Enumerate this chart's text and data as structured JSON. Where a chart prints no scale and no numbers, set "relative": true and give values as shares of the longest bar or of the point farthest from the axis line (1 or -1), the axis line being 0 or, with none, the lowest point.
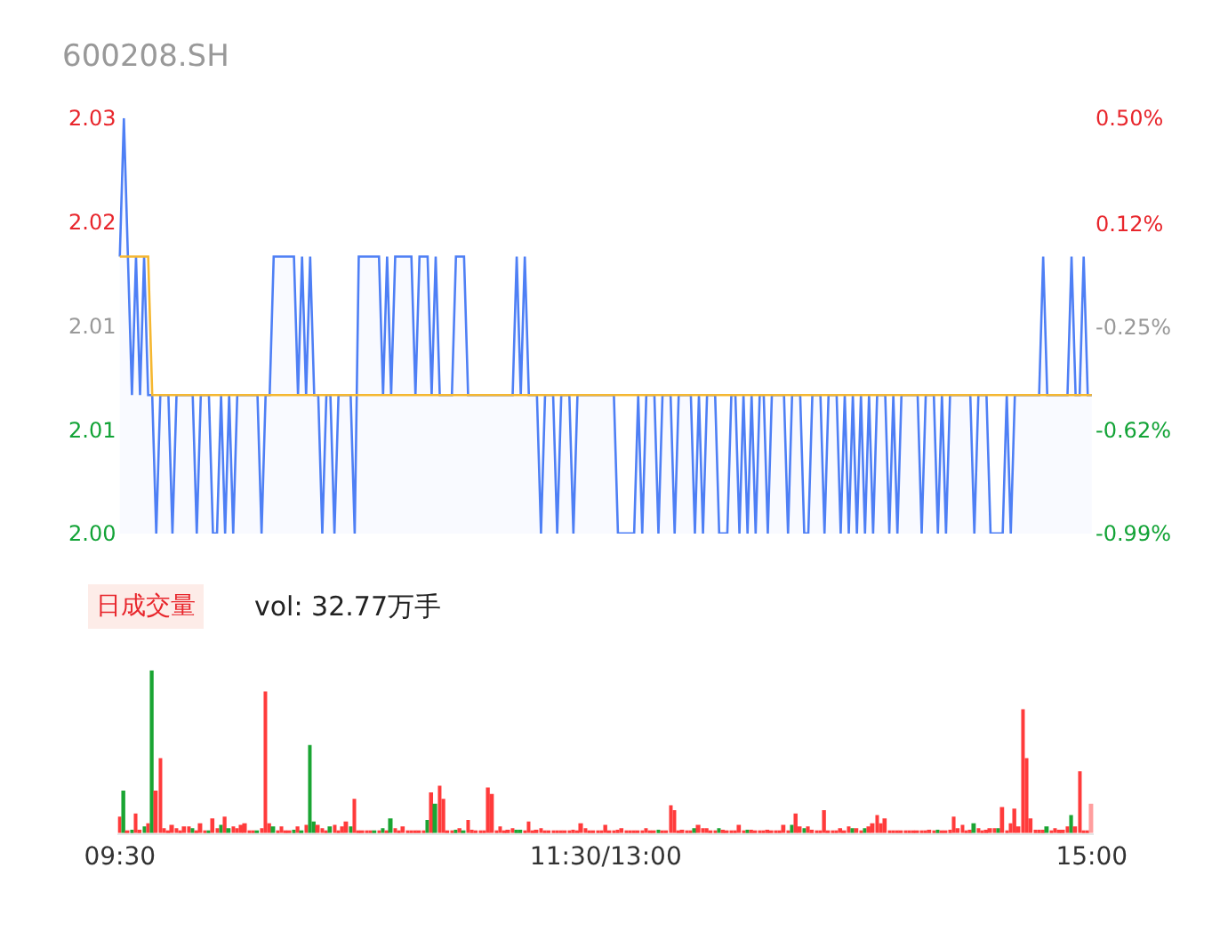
{
  "chart_data": [
    {
      "type": "line",
      "title": "600208.SH",
      "tick_labels": "y",
      "categories": [
        null,
        null,
        null,
        null,
        null,
        null,
        null,
        null,
        null,
        null,
        null,
        null,
        null,
        null,
        null,
        null,
        null,
        null,
        null,
        null,
        null,
        null,
        null,
        null,
        null,
        null,
        null,
        null,
        null,
        null,
        null,
        null,
        null,
        null,
        null,
        null,
        null,
        null,
        null,
        null,
        null,
        null,
        null,
        null,
        null,
        null,
        null,
        null,
        null,
        null,
        null,
        null,
        null,
        null,
        null,
        null,
        null,
        null,
        null,
        null,
        null,
        null,
        null,
        null,
        null,
        null,
        null,
        null,
        null,
        null,
        null,
        null,
        null,
        null,
        null,
        null,
        null,
        null,
        null,
        null,
        null,
        null,
        null,
        null,
        null,
        null,
        null,
        null,
        null,
        null,
        null,
        null,
        null,
        null,
        null,
        null,
        null,
        null,
        null,
        null,
        null,
        null,
        null,
        null,
        null,
        null,
        null,
        null,
        null,
        null,
        null,
        null,
        null,
        null,
        null,
        null,
        null,
        null,
        null,
        null,
        null,
        null,
        null,
        null,
        null,
        null,
        null,
        null,
        null,
        null,
        null,
        null,
        null,
        null,
        null,
        null,
        null,
        null,
        null,
        null,
        null,
        null,
        null,
        null,
        null,
        null,
        null,
        null,
        null,
        null,
        null,
        null,
        null,
        null,
        null,
        null,
        null,
        null,
        null,
        null,
        null,
        null,
        null,
        null,
        null,
        null,
        null,
        null,
        null,
        null,
        null,
        null,
        null,
        null,
        null,
        null,
        null,
        null,
        null,
        null,
        null,
        null,
        null,
        null,
        null,
        null,
        null,
        null,
        null,
        null,
        null,
        null,
        null,
        null,
        null,
        null,
        null,
        null,
        null,
        null,
        null,
        null,
        null,
        null,
        null,
        null,
        null,
        null,
        null,
        null,
        null,
        null,
        null,
        null,
        null,
        null,
        null,
        null,
        null,
        null,
        null,
        null,
        null,
        null,
        null,
        null,
        null,
        null,
        null,
        null,
        null,
        null,
        null,
        null,
        null,
        null,
        null,
        null,
        null,
        null,
        null
      ],
      "ylim": [
        2.0,
        2.03
      ],
      "yticks": [
        {
          "value": 2.0,
          "label": "2.00"
        },
        {
          "value": 2.0075,
          "label": "2.01"
        },
        {
          "value": 2.015,
          "label": "2.01"
        },
        {
          "value": 2.0225,
          "label": "2.02"
        },
        {
          "value": 2.03,
          "label": "2.03"
        }
      ],
      "y2lim": [
        -0.99,
        0.5
      ],
      "y2ticks": [
        {
          "value": -0.99,
          "label": "-0.99%"
        },
        {
          "value": -0.62,
          "label": "-0.62%"
        },
        {
          "value": -0.25,
          "label": "-0.25%"
        },
        {
          "value": 0.12,
          "label": "0.12%"
        },
        {
          "value": 0.5,
          "label": "0.50%"
        }
      ],
      "series": [
        {
          "type": "area",
          "color": "#4e7ff5",
          "values": [
            2.02,
            2.03,
            2.02,
            2.01,
            2.02,
            2.01,
            2.02,
            2.01,
            2.01,
            2.0,
            2.01,
            2.01,
            2.01,
            2.0,
            2.01,
            2.01,
            2.01,
            2.01,
            2.01,
            2.0,
            2.01,
            2.01,
            2.01,
            2.0,
            2.0,
            2.01,
            2.0,
            2.01,
            2.0,
            2.01,
            2.01,
            2.01,
            2.01,
            2.01,
            2.01,
            2.0,
            2.01,
            2.01,
            2.02,
            2.02,
            2.02,
            2.02,
            2.02,
            2.02,
            2.01,
            2.02,
            2.01,
            2.02,
            2.01,
            2.01,
            2.0,
            2.01,
            2.01,
            2.0,
            2.01,
            2.01,
            2.01,
            2.01,
            2.0,
            2.02,
            2.02,
            2.02,
            2.02,
            2.02,
            2.02,
            2.01,
            2.02,
            2.01,
            2.02,
            2.02,
            2.02,
            2.02,
            2.02,
            2.01,
            2.02,
            2.02,
            2.02,
            2.01,
            2.02,
            2.01,
            2.01,
            2.01,
            2.01,
            2.02,
            2.02,
            2.02,
            2.01,
            2.01,
            2.01,
            2.01,
            2.01,
            2.01,
            2.01,
            2.01,
            2.01,
            2.01,
            2.01,
            2.01,
            2.02,
            2.01,
            2.02,
            2.01,
            2.01,
            2.01,
            2.0,
            2.01,
            2.01,
            2.01,
            2.0,
            2.01,
            2.01,
            2.01,
            2.0,
            2.01,
            2.01,
            2.01,
            2.01,
            2.01,
            2.01,
            2.01,
            2.01,
            2.01,
            2.01,
            2.0,
            2.0,
            2.0,
            2.0,
            2.0,
            2.01,
            2.0,
            2.01,
            2.01,
            2.01,
            2.0,
            2.01,
            2.01,
            2.01,
            2.0,
            2.01,
            2.01,
            2.01,
            2.01,
            2.0,
            2.01,
            2.0,
            2.01,
            2.01,
            2.01,
            2.0,
            2.0,
            2.0,
            2.01,
            2.01,
            2.0,
            2.01,
            2.0,
            2.01,
            2.0,
            2.01,
            2.01,
            2.0,
            2.01,
            2.01,
            2.01,
            2.01,
            2.0,
            2.01,
            2.01,
            2.01,
            2.0,
            2.0,
            2.01,
            2.01,
            2.01,
            2.0,
            2.01,
            2.01,
            2.01,
            2.0,
            2.01,
            2.0,
            2.01,
            2.0,
            2.01,
            2.0,
            2.01,
            2.0,
            2.01,
            2.01,
            2.01,
            2.0,
            2.01,
            2.0,
            2.01,
            2.01,
            2.01,
            2.01,
            2.01,
            2.0,
            2.01,
            2.01,
            2.01,
            2.0,
            2.01,
            2.0,
            2.01,
            2.01,
            2.01,
            2.01,
            2.01,
            2.01,
            2.0,
            2.01,
            2.01,
            2.01,
            2.0,
            2.0,
            2.0,
            2.0,
            2.01,
            2.0,
            2.01,
            2.01,
            2.01,
            2.01,
            2.01,
            2.01,
            2.01,
            2.02,
            2.01,
            2.01,
            2.01,
            2.01,
            2.01,
            2.01,
            2.02,
            2.01,
            2.01,
            2.02,
            2.01,
            2.01
          ]
        },
        {
          "type": "line",
          "color": "#f5b731",
          "values": [
            2.02,
            2.02,
            2.02,
            2.02,
            2.02,
            2.02,
            2.02,
            2.02,
            2.01,
            2.01,
            2.01,
            2.01,
            2.01,
            2.01,
            2.01,
            2.01,
            2.01,
            2.01,
            2.01,
            2.01,
            2.01,
            2.01,
            2.01,
            2.01,
            2.01,
            2.01,
            2.01,
            2.01,
            2.01,
            2.01,
            2.01,
            2.01,
            2.01,
            2.01,
            2.01,
            2.01,
            2.01,
            2.01,
            2.01,
            2.01,
            2.01,
            2.01,
            2.01,
            2.01,
            2.01,
            2.01,
            2.01,
            2.01,
            2.01,
            2.01,
            2.01,
            2.01,
            2.01,
            2.01,
            2.01,
            2.01,
            2.01,
            2.01,
            2.01,
            2.01,
            2.01,
            2.01,
            2.01,
            2.01,
            2.01,
            2.01,
            2.01,
            2.01,
            2.01,
            2.01,
            2.01,
            2.01,
            2.01,
            2.01,
            2.01,
            2.01,
            2.01,
            2.01,
            2.01,
            2.01,
            2.01,
            2.01,
            2.01,
            2.01,
            2.01,
            2.01,
            2.01,
            2.01,
            2.01,
            2.01,
            2.01,
            2.01,
            2.01,
            2.01,
            2.01,
            2.01,
            2.01,
            2.01,
            2.01,
            2.01,
            2.01,
            2.01,
            2.01,
            2.01,
            2.01,
            2.01,
            2.01,
            2.01,
            2.01,
            2.01,
            2.01,
            2.01,
            2.01,
            2.01,
            2.01,
            2.01,
            2.01,
            2.01,
            2.01,
            2.01,
            2.01,
            2.01,
            2.01,
            2.01,
            2.01,
            2.01,
            2.01,
            2.01,
            2.01,
            2.01,
            2.01,
            2.01,
            2.01,
            2.01,
            2.01,
            2.01,
            2.01,
            2.01,
            2.01,
            2.01,
            2.01,
            2.01,
            2.01,
            2.01,
            2.01,
            2.01,
            2.01,
            2.01,
            2.01,
            2.01,
            2.01,
            2.01,
            2.01,
            2.01,
            2.01,
            2.01,
            2.01,
            2.01,
            2.01,
            2.01,
            2.01,
            2.01,
            2.01,
            2.01,
            2.01,
            2.01,
            2.01,
            2.01,
            2.01,
            2.01,
            2.01,
            2.01,
            2.01,
            2.01,
            2.01,
            2.01,
            2.01,
            2.01,
            2.01,
            2.01,
            2.01,
            2.01,
            2.01,
            2.01,
            2.01,
            2.01,
            2.01,
            2.01,
            2.01,
            2.01,
            2.01,
            2.01,
            2.01,
            2.01,
            2.01,
            2.01,
            2.01,
            2.01,
            2.01,
            2.01,
            2.01,
            2.01,
            2.01,
            2.01,
            2.01,
            2.01,
            2.01,
            2.01,
            2.01,
            2.01,
            2.01,
            2.01,
            2.01,
            2.01,
            2.01,
            2.01,
            2.01,
            2.01,
            2.01,
            2.01,
            2.01,
            2.01,
            2.01,
            2.01,
            2.01,
            2.01,
            2.01,
            2.01,
            2.01,
            2.01,
            2.01,
            2.01,
            2.01,
            2.01,
            2.01,
            2.01,
            2.01,
            2.01,
            2.01,
            2.01,
            2.01
          ]
        }
      ]
    },
    {
      "type": "bar",
      "title": "日成交量",
      "annotations": [
        "vol: 32.77万手"
      ],
      "relative": true,
      "tick_labels": "x",
      "categories": [
        "09:30",
        null,
        null,
        null,
        null,
        null,
        null,
        null,
        null,
        null,
        null,
        null,
        null,
        null,
        null,
        null,
        null,
        null,
        null,
        null,
        null,
        null,
        null,
        null,
        null,
        null,
        null,
        null,
        null,
        null,
        null,
        null,
        null,
        null,
        null,
        null,
        null,
        null,
        null,
        null,
        null,
        null,
        null,
        null,
        null,
        null,
        null,
        null,
        null,
        null,
        null,
        null,
        null,
        null,
        null,
        null,
        null,
        null,
        null,
        null,
        null,
        null,
        null,
        null,
        null,
        null,
        null,
        null,
        null,
        null,
        null,
        null,
        null,
        null,
        null,
        null,
        null,
        null,
        null,
        null,
        null,
        null,
        null,
        null,
        null,
        null,
        null,
        null,
        null,
        null,
        null,
        null,
        null,
        null,
        null,
        null,
        null,
        null,
        null,
        null,
        null,
        null,
        null,
        null,
        null,
        null,
        null,
        null,
        null,
        null,
        null,
        null,
        null,
        null,
        null,
        null,
        null,
        null,
        null,
        null,
        "11:30/13:00",
        null,
        null,
        null,
        null,
        null,
        null,
        null,
        null,
        null,
        null,
        null,
        null,
        null,
        null,
        null,
        null,
        null,
        null,
        null,
        null,
        null,
        null,
        null,
        null,
        null,
        null,
        null,
        null,
        null,
        null,
        null,
        null,
        null,
        null,
        null,
        null,
        null,
        null,
        null,
        null,
        null,
        null,
        null,
        null,
        null,
        null,
        null,
        null,
        null,
        null,
        null,
        null,
        null,
        null,
        null,
        null,
        null,
        null,
        null,
        null,
        null,
        null,
        null,
        null,
        null,
        null,
        null,
        null,
        null,
        null,
        null,
        null,
        null,
        null,
        null,
        null,
        null,
        null,
        null,
        null,
        null,
        null,
        null,
        null,
        null,
        null,
        null,
        null,
        null,
        null,
        null,
        null,
        null,
        null,
        null,
        null,
        null,
        null,
        null,
        null,
        null,
        null,
        null,
        null,
        null,
        null,
        null,
        null,
        null,
        null,
        null,
        null,
        null,
        null,
        null,
        null,
        null,
        null,
        null,
        "15:00"
      ],
      "values": [
        0.1,
        0.26,
        0.01,
        0.02,
        0.12,
        0.02,
        0.04,
        0.06,
        1.0,
        0.26,
        0.46,
        0.03,
        0.01,
        0.05,
        0.03,
        0.01,
        0.04,
        0.04,
        0.03,
        0.01,
        0.06,
        0.01,
        0.01,
        0.09,
        0.03,
        0.05,
        0.1,
        0.03,
        0.04,
        0.03,
        0.05,
        0.06,
        0.01,
        0.01,
        0.01,
        0.03,
        0.87,
        0.06,
        0.04,
        0.01,
        0.04,
        0.01,
        0.01,
        0.02,
        0.04,
        0.01,
        0.05,
        0.54,
        0.07,
        0.05,
        0.03,
        0.01,
        0.04,
        0.05,
        0.01,
        0.04,
        0.07,
        0.04,
        0.21,
        0.01,
        0.01,
        0.01,
        0.01,
        0.01,
        0.01,
        0.03,
        0.01,
        0.09,
        0.03,
        0.01,
        0.04,
        0.01,
        0.01,
        0.01,
        0.01,
        0.01,
        0.08,
        0.25,
        0.18,
        0.29,
        0.21,
        0.01,
        0.01,
        0.02,
        0.03,
        0.01,
        0.08,
        0.02,
        0.01,
        0.01,
        0.01,
        0.28,
        0.24,
        0.01,
        0.04,
        0.01,
        0.02,
        0.03,
        0.02,
        0.02,
        0.01,
        0.07,
        0.01,
        0.02,
        0.03,
        0.01,
        0.01,
        0.01,
        0.01,
        0.01,
        0.01,
        0.01,
        0.02,
        0.01,
        0.06,
        0.03,
        0.01,
        0.01,
        0.01,
        0.01,
        0.05,
        0.01,
        0.01,
        0.02,
        0.03,
        0.01,
        0.01,
        0.01,
        0.01,
        0.01,
        0.03,
        0.01,
        0.01,
        0.02,
        0.01,
        0.01,
        0.17,
        0.14,
        0.01,
        0.02,
        0.01,
        0.01,
        0.03,
        0.05,
        0.03,
        0.03,
        0.01,
        0.01,
        0.03,
        0.02,
        0.01,
        0.01,
        0.01,
        0.05,
        0.01,
        0.02,
        0.02,
        0.01,
        0.01,
        0.01,
        0.02,
        0.01,
        0.01,
        0.01,
        0.05,
        0.01,
        0.05,
        0.12,
        0.04,
        0.03,
        0.04,
        0.02,
        0.01,
        0.01,
        0.14,
        0.01,
        0.01,
        0.01,
        0.03,
        0.01,
        0.04,
        0.03,
        0.03,
        0.01,
        0.03,
        0.04,
        0.06,
        0.11,
        0.06,
        0.09,
        0.01,
        0.01,
        0.01,
        0.01,
        0.01,
        0.01,
        0.01,
        0.01,
        0.01,
        0.01,
        0.02,
        0.01,
        0.02,
        0.01,
        0.01,
        0.02,
        0.1,
        0.03,
        0.05,
        0.01,
        0.02,
        0.06,
        0.03,
        0.01,
        0.02,
        0.03,
        0.03,
        0.03,
        0.16,
        0.01,
        0.06,
        0.15,
        0.04,
        0.76,
        0.46,
        0.09,
        0.02,
        0.02,
        0.02,
        0.04,
        0.01,
        0.03,
        0.02,
        0.02,
        0.04,
        0.11,
        0.04,
        0.38,
        0.01,
        0.01,
        0.18
      ],
      "colors": [
        "#ff3b3b",
        "#1aa533",
        "#ff3b3b",
        "#1aa533",
        "#ff3b3b",
        "#ff3b3b",
        "#1aa533",
        "#ff3b3b",
        "#1aa533",
        "#ff3b3b",
        "#ff3b3b",
        "#ff3b3b",
        "#ff3b3b",
        "#ff3b3b",
        "#ff3b3b",
        "#ff3b3b",
        "#ff3b3b",
        "#ff3b3b",
        "#1aa533",
        "#ff3b3b",
        "#ff3b3b",
        "#ff3b3b",
        "#1aa533",
        "#ff3b3b",
        "#ff3b3b",
        "#1aa533",
        "#ff3b3b",
        "#1aa533",
        "#ff3b3b",
        "#ff3b3b",
        "#ff3b3b",
        "#ff3b3b",
        "#ff3b3b",
        "#ff3b3b",
        "#1aa533",
        "#ff3b3b",
        "#ff3b3b",
        "#ff3b3b",
        "#1aa533",
        "#ff3b3b",
        "#ff3b3b",
        "#ff3b3b",
        "#ff3b3b",
        "#1aa533",
        "#ff3b3b",
        "#1aa533",
        "#ff3b3b",
        "#1aa533",
        "#1aa533",
        "#ff3b3b",
        "#ff3b3b",
        "#ff3b3b",
        "#1aa533",
        "#ff3b3b",
        "#ff3b3b",
        "#ff3b3b",
        "#ff3b3b",
        "#1aa533",
        "#ff3b3b",
        "#ff3b3b",
        "#ff3b3b",
        "#ff3b3b",
        "#ff3b3b",
        "#1aa533",
        "#ff3b3b",
        "#1aa533",
        "#ff3b3b",
        "#1aa533",
        "#ff3b3b",
        "#ff3b3b",
        "#ff3b3b",
        "#ff3b3b",
        "#ff3b3b",
        "#ff3b3b",
        "#ff3b3b",
        "#ff3b3b",
        "#1aa533",
        "#ff3b3b",
        "#1aa533",
        "#ff3b3b",
        "#ff3b3b",
        "#ff3b3b",
        "#ff3b3b",
        "#1aa533",
        "#ff3b3b",
        "#1aa533",
        "#ff3b3b",
        "#ff3b3b",
        "#ff3b3b",
        "#ff3b3b",
        "#ff3b3b",
        "#ff3b3b",
        "#ff3b3b",
        "#ff3b3b",
        "#ff3b3b",
        "#ff3b3b",
        "#ff3b3b",
        "#ff3b3b",
        "#1aa533",
        "#1aa533",
        "#ff3b3b",
        "#ff3b3b",
        "#ff3b3b",
        "#ff3b3b",
        "#ff3b3b",
        "#ff3b3b",
        "#ff3b3b",
        "#ff3b3b",
        "#ff3b3b",
        "#ff3b3b",
        "#ff3b3b",
        "#ff3b3b",
        "#ff3b3b",
        "#ff3b3b",
        "#ff3b3b",
        "#ff3b3b",
        "#ff3b3b",
        "#ff3b3b",
        "#ff3b3b",
        "#ff3b3b",
        "#ff3b3b",
        "#ff3b3b",
        "#ff3b3b",
        "#ff3b3b",
        "#ff3b3b",
        "#ff3b3b",
        "#ff3b3b",
        "#ff3b3b",
        "#ff3b3b",
        "#ff3b3b",
        "#ff3b3b",
        "#ff3b3b",
        "#ff3b3b",
        "#1aa533",
        "#ff3b3b",
        "#ff3b3b",
        "#ff3b3b",
        "#ff3b3b",
        "#ff3b3b",
        "#ff3b3b",
        "#ff3b3b",
        "#ff3b3b",
        "#1aa533",
        "#ff3b3b",
        "#ff3b3b",
        "#ff3b3b",
        "#ff3b3b",
        "#ff3b3b",
        "#1aa533",
        "#ff3b3b",
        "#ff3b3b",
        "#ff3b3b",
        "#ff3b3b",
        "#ff3b3b",
        "#ff3b3b",
        "#1aa533",
        "#ff3b3b",
        "#ff3b3b",
        "#ff3b3b",
        "#ff3b3b",
        "#ff3b3b",
        "#ff3b3b",
        "#ff3b3b",
        "#ff3b3b",
        "#ff3b3b",
        "#ff3b3b",
        "#1aa533",
        "#ff3b3b",
        "#ff3b3b",
        "#1aa533",
        "#ff3b3b",
        "#ff3b3b",
        "#ff3b3b",
        "#ff3b3b",
        "#ff3b3b",
        "#ff3b3b",
        "#ff3b3b",
        "#ff3b3b",
        "#ff3b3b",
        "#ff3b3b",
        "#ff3b3b",
        "#1aa533",
        "#ff3b3b",
        "#ff3b3b",
        "#1aa533",
        "#ff3b3b",
        "#ff3b3b",
        "#ff3b3b",
        "#ff3b3b",
        "#ff3b3b",
        "#ff3b3b",
        "#ff3b3b",
        "#ff3b3b",
        "#ff3b3b",
        "#ff3b3b",
        "#ff3b3b",
        "#ff3b3b",
        "#ff3b3b",
        "#ff3b3b",
        "#ff3b3b",
        "#ff3b3b",
        "#ff3b3b",
        "#1aa533",
        "#ff3b3b",
        "#ff3b3b",
        "#ff3b3b",
        "#ff3b3b",
        "#ff3b3b",
        "#ff3b3b",
        "#ff3b3b",
        "#ff3b3b",
        "#1aa533",
        "#ff3b3b",
        "#ff3b3b",
        "#ff3b3b",
        "#ff3b3b",
        "#ff3b3b",
        "#1aa533",
        "#ff3b3b",
        "#ff3b3b",
        "#ff3b3b",
        "#ff3b3b",
        "#ff3b3b",
        "#ff3b3b",
        "#ff3b3b",
        "#ff3b3b",
        "#ff3b3b",
        "#ff3b3b",
        "#ff3b3b",
        "#1aa533",
        "#ff3b3b",
        "#ff3b3b",
        "#ff3b3b",
        "#ff3b3b",
        "#ff3b3b",
        "#1aa533",
        "#ff3b3b",
        "#ff3b3b",
        "#ff3b3b",
        "#ff3b3b",
        "#ff9e9e"
      ]
    }
  ]
}
